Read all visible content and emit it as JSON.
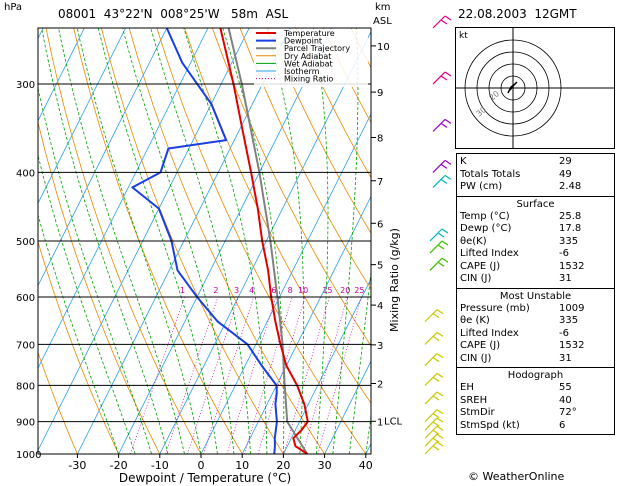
{
  "header": {
    "hpa_label": "hPa",
    "station": "08001  43°22'N  008°25'W   58m  ASL",
    "km_label": "km",
    "asl_label": "ASL",
    "datetime": "22.08.2003  12GMT"
  },
  "chart_data": {
    "type": "skew-t",
    "xlabel": "Dewpoint / Temperature (°C)",
    "ylabel_right": "Mixing Ratio (g/kg)",
    "x_ticks": [
      -30,
      -20,
      -10,
      0,
      10,
      20,
      30,
      40
    ],
    "pressure_levels": [
      300,
      400,
      500,
      600,
      700,
      800,
      900,
      1000
    ],
    "altitude_km": [
      {
        "km": 10,
        "p": 265
      },
      {
        "km": 9,
        "p": 308
      },
      {
        "km": 8,
        "p": 357
      },
      {
        "km": 7,
        "p": 411
      },
      {
        "km": 6,
        "p": 472
      },
      {
        "km": 5,
        "p": 540
      },
      {
        "km": 4,
        "p": 616
      },
      {
        "km": 3,
        "p": 701
      },
      {
        "km": 2,
        "p": 795
      },
      {
        "km": 1,
        "p": 899
      }
    ],
    "lcl_label": "LCL",
    "mixing_ratio_labels": [
      "1",
      "2",
      "3",
      "4",
      "6",
      "8",
      "10",
      "15",
      "20",
      "25"
    ],
    "legend": [
      "Temperature",
      "Dewpoint",
      "Parcel Trajectory",
      "Dry Adiabat",
      "Wet Adiabat",
      "Isotherm",
      "Mixing Ratio"
    ],
    "colors": {
      "temperature": "#e00000",
      "dewpoint": "#1a3ee0",
      "parcel": "#808080",
      "dry_adiabat": "#e88a00",
      "wet_adiabat": "#00a000",
      "isotherm": "#2aa0e8",
      "mixing_ratio": "#c000a0"
    },
    "temperature_profile": [
      {
        "p": 1000,
        "t": 25.8
      },
      {
        "p": 975,
        "t": 22.0
      },
      {
        "p": 950,
        "t": 20.5
      },
      {
        "p": 925,
        "t": 21.5
      },
      {
        "p": 900,
        "t": 22.0
      },
      {
        "p": 850,
        "t": 19.0
      },
      {
        "p": 800,
        "t": 15.0
      },
      {
        "p": 750,
        "t": 10.0
      },
      {
        "p": 700,
        "t": 6.0
      },
      {
        "p": 650,
        "t": 2.0
      },
      {
        "p": 600,
        "t": -2.0
      },
      {
        "p": 550,
        "t": -6.0
      },
      {
        "p": 500,
        "t": -11.0
      },
      {
        "p": 450,
        "t": -16.0
      },
      {
        "p": 400,
        "t": -22.0
      },
      {
        "p": 350,
        "t": -29.0
      },
      {
        "p": 300,
        "t": -37.0
      },
      {
        "p": 250,
        "t": -47.0
      }
    ],
    "dewpoint_profile": [
      {
        "p": 1000,
        "t": 17.8
      },
      {
        "p": 975,
        "t": 17.0
      },
      {
        "p": 950,
        "t": 16.0
      },
      {
        "p": 900,
        "t": 14.5
      },
      {
        "p": 850,
        "t": 12.0
      },
      {
        "p": 820,
        "t": 11.0
      },
      {
        "p": 800,
        "t": 10.0
      },
      {
        "p": 750,
        "t": 4.0
      },
      {
        "p": 700,
        "t": -2.0
      },
      {
        "p": 650,
        "t": -12.0
      },
      {
        "p": 600,
        "t": -20.0
      },
      {
        "p": 550,
        "t": -28.0
      },
      {
        "p": 500,
        "t": -33.0
      },
      {
        "p": 450,
        "t": -40.0
      },
      {
        "p": 420,
        "t": -49.0
      },
      {
        "p": 400,
        "t": -44.0
      },
      {
        "p": 370,
        "t": -45.0
      },
      {
        "p": 360,
        "t": -32.0
      },
      {
        "p": 320,
        "t": -40.0
      },
      {
        "p": 280,
        "t": -52.0
      },
      {
        "p": 250,
        "t": -60.0
      }
    ],
    "parcel_profile": [
      {
        "p": 1000,
        "t": 25.8
      },
      {
        "p": 900,
        "t": 17.0
      },
      {
        "p": 800,
        "t": 12.0
      },
      {
        "p": 700,
        "t": 6.5
      },
      {
        "p": 600,
        "t": -0.5
      },
      {
        "p": 500,
        "t": -9.0
      },
      {
        "p": 400,
        "t": -20.0
      },
      {
        "p": 300,
        "t": -35.0
      },
      {
        "p": 250,
        "t": -45.0
      }
    ]
  },
  "hodograph": {
    "unit": "kt",
    "ring_labels": [
      "20",
      "30"
    ]
  },
  "indices": [
    {
      "label": "K",
      "value": "29"
    },
    {
      "label": "Totals Totals",
      "value": "49"
    },
    {
      "label": "PW (cm)",
      "value": "2.48"
    }
  ],
  "surface": {
    "title": "Surface",
    "rows": [
      {
        "label": "Temp (°C)",
        "value": "25.8"
      },
      {
        "label": "Dewp (°C)",
        "value": "17.8"
      },
      {
        "label": "θe(K)",
        "value": "335"
      },
      {
        "label": "Lifted Index",
        "value": "-6"
      },
      {
        "label": "CAPE (J)",
        "value": "1532"
      },
      {
        "label": "CIN (J)",
        "value": "31"
      }
    ]
  },
  "most_unstable": {
    "title": "Most Unstable",
    "rows": [
      {
        "label": "Pressure (mb)",
        "value": "1009"
      },
      {
        "label": "θe (K)",
        "value": "335"
      },
      {
        "label": "Lifted Index",
        "value": "-6"
      },
      {
        "label": "CAPE (J)",
        "value": "1532"
      },
      {
        "label": "CIN (J)",
        "value": "31"
      }
    ]
  },
  "hodograph_box": {
    "title": "Hodograph",
    "rows": [
      {
        "label": "EH",
        "value": "55"
      },
      {
        "label": "SREH",
        "value": "40"
      },
      {
        "label": "StmDir",
        "value": "72°"
      },
      {
        "label": "StmSpd (kt)",
        "value": "6"
      }
    ]
  },
  "footer": "© WeatherOnline"
}
